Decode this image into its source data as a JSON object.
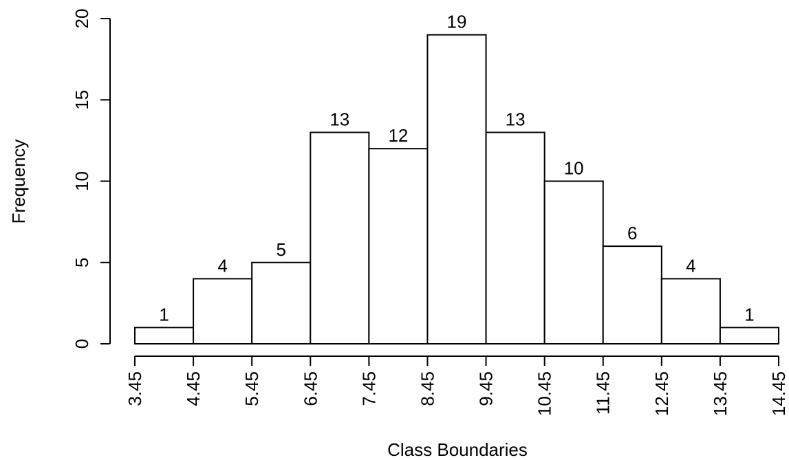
{
  "chart_data": {
    "type": "bar",
    "xlabel": "Class Boundaries",
    "ylabel": "Frequency",
    "boundaries": [
      "3.45",
      "4.45",
      "5.45",
      "6.45",
      "7.45",
      "8.45",
      "9.45",
      "10.45",
      "11.45",
      "12.45",
      "13.45",
      "14.45"
    ],
    "bins": [
      {
        "from": 3.45,
        "to": 4.45,
        "value": 1
      },
      {
        "from": 4.45,
        "to": 5.45,
        "value": 4
      },
      {
        "from": 5.45,
        "to": 6.45,
        "value": 5
      },
      {
        "from": 6.45,
        "to": 7.45,
        "value": 13
      },
      {
        "from": 7.45,
        "to": 8.45,
        "value": 12
      },
      {
        "from": 8.45,
        "to": 9.45,
        "value": 19
      },
      {
        "from": 9.45,
        "to": 10.45,
        "value": 13
      },
      {
        "from": 10.45,
        "to": 11.45,
        "value": 10
      },
      {
        "from": 11.45,
        "to": 12.45,
        "value": 6
      },
      {
        "from": 12.45,
        "to": 13.45,
        "value": 4
      },
      {
        "from": 13.45,
        "to": 14.45,
        "value": 1
      }
    ],
    "yticks": [
      0,
      5,
      10,
      15,
      20
    ],
    "ylim": [
      0,
      20
    ],
    "xlim": [
      3.45,
      14.45
    ],
    "grid": false,
    "legend": "none"
  }
}
